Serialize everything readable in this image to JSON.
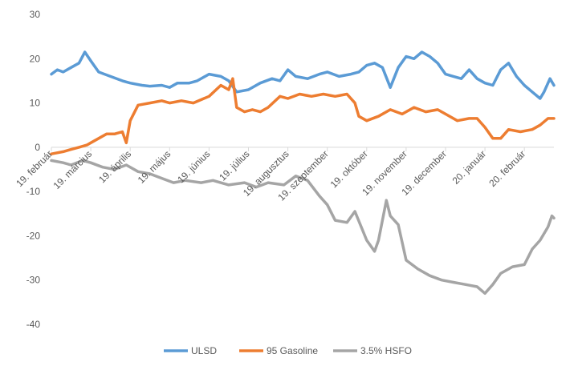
{
  "chart_data": {
    "type": "line",
    "title": "",
    "xlabel": "",
    "ylabel": "",
    "ylim": [
      -40,
      30
    ],
    "yticks": [
      30,
      20,
      10,
      0,
      -10,
      -20,
      -30,
      -40
    ],
    "grid": false,
    "legend_position": "bottom",
    "x_tick_labels": [
      "19. február",
      "19. március",
      "19. április",
      "19. május",
      "19. június",
      "19. július",
      "19. augusztus",
      "19. szeptember",
      "19. október",
      "19. november",
      "19. december",
      "20. január",
      "20. február"
    ],
    "series": [
      {
        "name": "ULSD",
        "color": "#5B9BD5",
        "points": [
          [
            0,
            16.5
          ],
          [
            0.15,
            17.5
          ],
          [
            0.3,
            17
          ],
          [
            0.5,
            18
          ],
          [
            0.7,
            19
          ],
          [
            0.85,
            21.5
          ],
          [
            1.0,
            19.5
          ],
          [
            1.2,
            17
          ],
          [
            1.5,
            16
          ],
          [
            1.8,
            15
          ],
          [
            2.0,
            14.5
          ],
          [
            2.3,
            14
          ],
          [
            2.5,
            13.8
          ],
          [
            2.8,
            14
          ],
          [
            3.0,
            13.5
          ],
          [
            3.2,
            14.5
          ],
          [
            3.5,
            14.5
          ],
          [
            3.7,
            15
          ],
          [
            4.0,
            16.5
          ],
          [
            4.3,
            16
          ],
          [
            4.5,
            15
          ],
          [
            4.7,
            12.5
          ],
          [
            5.0,
            13
          ],
          [
            5.3,
            14.5
          ],
          [
            5.6,
            15.5
          ],
          [
            5.8,
            15
          ],
          [
            6.0,
            17.5
          ],
          [
            6.2,
            16
          ],
          [
            6.5,
            15.5
          ],
          [
            6.8,
            16.5
          ],
          [
            7.0,
            17
          ],
          [
            7.3,
            16
          ],
          [
            7.6,
            16.5
          ],
          [
            7.8,
            17
          ],
          [
            8.0,
            18.5
          ],
          [
            8.2,
            19
          ],
          [
            8.4,
            18
          ],
          [
            8.6,
            13.5
          ],
          [
            8.8,
            18
          ],
          [
            9.0,
            20.5
          ],
          [
            9.2,
            20
          ],
          [
            9.4,
            21.5
          ],
          [
            9.6,
            20.5
          ],
          [
            9.8,
            19
          ],
          [
            10.0,
            16.5
          ],
          [
            10.2,
            16
          ],
          [
            10.4,
            15.5
          ],
          [
            10.6,
            17.5
          ],
          [
            10.8,
            15.5
          ],
          [
            11.0,
            14.5
          ],
          [
            11.2,
            14
          ],
          [
            11.4,
            17.5
          ],
          [
            11.6,
            19
          ],
          [
            11.8,
            16
          ],
          [
            12.0,
            14
          ],
          [
            12.2,
            12.5
          ],
          [
            12.4,
            11
          ],
          [
            12.5,
            12.5
          ],
          [
            12.65,
            15.5
          ],
          [
            12.75,
            14
          ]
        ]
      },
      {
        "name": "95 Gasoline",
        "color": "#ED7D31",
        "points": [
          [
            0,
            -1.5
          ],
          [
            0.3,
            -1
          ],
          [
            0.5,
            -0.5
          ],
          [
            0.7,
            0
          ],
          [
            0.9,
            0.5
          ],
          [
            1.0,
            1
          ],
          [
            1.2,
            2
          ],
          [
            1.4,
            3
          ],
          [
            1.6,
            3
          ],
          [
            1.8,
            3.5
          ],
          [
            1.9,
            1
          ],
          [
            2.0,
            6
          ],
          [
            2.2,
            9.5
          ],
          [
            2.5,
            10
          ],
          [
            2.8,
            10.5
          ],
          [
            3.0,
            10
          ],
          [
            3.3,
            10.5
          ],
          [
            3.6,
            10
          ],
          [
            4.0,
            11.5
          ],
          [
            4.3,
            14
          ],
          [
            4.5,
            13
          ],
          [
            4.6,
            15.5
          ],
          [
            4.7,
            9
          ],
          [
            4.9,
            8
          ],
          [
            5.1,
            8.5
          ],
          [
            5.3,
            8
          ],
          [
            5.5,
            9
          ],
          [
            5.8,
            11.5
          ],
          [
            6.0,
            11
          ],
          [
            6.3,
            12
          ],
          [
            6.6,
            11.5
          ],
          [
            6.9,
            12
          ],
          [
            7.2,
            11.5
          ],
          [
            7.5,
            12
          ],
          [
            7.7,
            10
          ],
          [
            7.8,
            7
          ],
          [
            8.0,
            6
          ],
          [
            8.3,
            7
          ],
          [
            8.6,
            8.5
          ],
          [
            8.9,
            7.5
          ],
          [
            9.2,
            9
          ],
          [
            9.5,
            8
          ],
          [
            9.8,
            8.5
          ],
          [
            10.0,
            7.5
          ],
          [
            10.3,
            6
          ],
          [
            10.6,
            6.5
          ],
          [
            10.8,
            6.5
          ],
          [
            11.0,
            4.5
          ],
          [
            11.2,
            2
          ],
          [
            11.4,
            2
          ],
          [
            11.6,
            4
          ],
          [
            11.9,
            3.5
          ],
          [
            12.2,
            4
          ],
          [
            12.4,
            5
          ],
          [
            12.6,
            6.5
          ],
          [
            12.75,
            6.5
          ]
        ]
      },
      {
        "name": "3.5% HSFO",
        "color": "#A5A5A5",
        "points": [
          [
            0,
            -3
          ],
          [
            0.3,
            -3.5
          ],
          [
            0.5,
            -4
          ],
          [
            0.8,
            -3
          ],
          [
            1.0,
            -3.5
          ],
          [
            1.3,
            -4.5
          ],
          [
            1.6,
            -5
          ],
          [
            1.9,
            -4
          ],
          [
            2.2,
            -5.5
          ],
          [
            2.5,
            -6
          ],
          [
            2.8,
            -7
          ],
          [
            3.1,
            -8
          ],
          [
            3.4,
            -7.5
          ],
          [
            3.8,
            -8
          ],
          [
            4.1,
            -7.5
          ],
          [
            4.5,
            -8.5
          ],
          [
            4.9,
            -8
          ],
          [
            5.2,
            -9
          ],
          [
            5.5,
            -8
          ],
          [
            5.9,
            -8.5
          ],
          [
            6.2,
            -6.5
          ],
          [
            6.5,
            -7.5
          ],
          [
            6.8,
            -11
          ],
          [
            7.0,
            -13
          ],
          [
            7.2,
            -16.5
          ],
          [
            7.5,
            -17
          ],
          [
            7.7,
            -14.5
          ],
          [
            8.0,
            -21
          ],
          [
            8.2,
            -23.5
          ],
          [
            8.3,
            -21
          ],
          [
            8.5,
            -12
          ],
          [
            8.6,
            -15.5
          ],
          [
            8.8,
            -17.5
          ],
          [
            9.0,
            -25.5
          ],
          [
            9.3,
            -27.5
          ],
          [
            9.6,
            -29
          ],
          [
            9.9,
            -30
          ],
          [
            10.2,
            -30.5
          ],
          [
            10.5,
            -31
          ],
          [
            10.8,
            -31.5
          ],
          [
            11.0,
            -33
          ],
          [
            11.2,
            -31
          ],
          [
            11.4,
            -28.5
          ],
          [
            11.7,
            -27
          ],
          [
            12.0,
            -26.5
          ],
          [
            12.2,
            -23
          ],
          [
            12.4,
            -21
          ],
          [
            12.6,
            -18
          ],
          [
            12.7,
            -15.5
          ],
          [
            12.75,
            -16
          ]
        ]
      }
    ]
  }
}
